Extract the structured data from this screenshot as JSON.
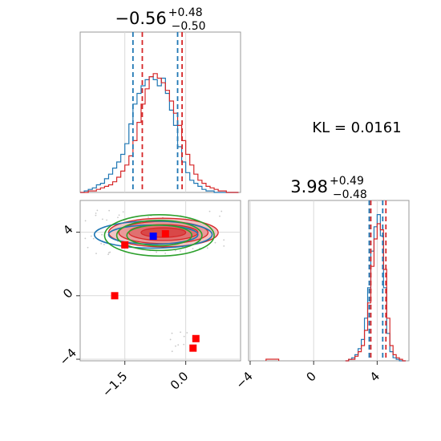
{
  "chart_data": [
    {
      "type": "histogram",
      "panel": "top-left",
      "title": {
        "value": "−0.56",
        "sup": "+0.48",
        "sub": "−0.50"
      },
      "xlim": [
        -2.6,
        1.35
      ],
      "bins_x": [
        -2.6,
        -2.5,
        -2.4,
        -2.3,
        -2.2,
        -2.1,
        -2.0,
        -1.9,
        -1.8,
        -1.7,
        -1.6,
        -1.5,
        -1.4,
        -1.3,
        -1.2,
        -1.1,
        -1.0,
        -0.9,
        -0.8,
        -0.7,
        -0.6,
        -0.5,
        -0.4,
        -0.3,
        -0.2,
        -0.1,
        0.0,
        0.1,
        0.2,
        0.3,
        0.4,
        0.5,
        0.6,
        0.7,
        0.8,
        0.9,
        1.0,
        1.1,
        1.2
      ],
      "series": [
        {
          "color": "#1f77b4",
          "values": [
            0.0,
            0.01,
            0.02,
            0.03,
            0.05,
            0.06,
            0.09,
            0.12,
            0.16,
            0.2,
            0.25,
            0.32,
            0.45,
            0.58,
            0.65,
            0.7,
            0.74,
            0.76,
            0.74,
            0.7,
            0.75,
            0.65,
            0.54,
            0.44,
            0.3,
            0.2,
            0.13,
            0.08,
            0.06,
            0.04,
            0.02,
            0.01,
            0.01,
            0.0,
            0.0,
            0.0,
            0.0,
            0.0,
            0.0
          ]
        },
        {
          "color": "#d62728",
          "values": [
            0.0,
            0.0,
            0.01,
            0.01,
            0.02,
            0.03,
            0.04,
            0.05,
            0.07,
            0.1,
            0.14,
            0.18,
            0.24,
            0.34,
            0.46,
            0.58,
            0.68,
            0.76,
            0.78,
            0.75,
            0.72,
            0.67,
            0.6,
            0.52,
            0.44,
            0.34,
            0.25,
            0.18,
            0.12,
            0.08,
            0.06,
            0.04,
            0.03,
            0.02,
            0.01,
            0.01,
            0.0,
            0.0,
            0.0
          ]
        }
      ],
      "quantile_lines": [
        {
          "color": "#1f77b4",
          "x": -1.3
        },
        {
          "color": "#1f77b4",
          "x": -0.2
        },
        {
          "color": "#d62728",
          "x": -1.07
        },
        {
          "color": "#d62728",
          "x": -0.09
        }
      ]
    },
    {
      "type": "contour",
      "panel": "bottom-left",
      "xlim": [
        -2.6,
        1.35
      ],
      "ylim": [
        -4.1,
        6.0
      ],
      "xticks": [
        -1.5,
        0.0
      ],
      "xtick_labels": [
        "−1.5",
        "0.0"
      ],
      "yticks": [
        -4,
        0,
        4
      ],
      "ytick_labels": [
        "−4",
        "0",
        "4"
      ],
      "series": [
        {
          "color": "#d62728",
          "center": [
            -0.55,
            3.98
          ],
          "ellipses": [
            [
              1.35,
              0.9
            ],
            [
              1.1,
              0.7
            ],
            [
              0.85,
              0.5
            ],
            [
              0.55,
              0.3
            ]
          ]
        },
        {
          "color": "#1f77b4",
          "center": [
            -0.8,
            3.85
          ],
          "ellipses": [
            [
              1.45,
              0.85
            ],
            [
              1.1,
              0.6
            ]
          ]
        },
        {
          "color": "#2ca02c",
          "center": [
            -0.65,
            3.8
          ],
          "ellipses": [
            [
              1.35,
              1.3
            ],
            [
              1.05,
              0.95
            ],
            [
              0.8,
              0.65
            ]
          ]
        }
      ],
      "markers": [
        {
          "color": "#ff0000",
          "x": -0.5,
          "y": 3.9
        },
        {
          "color": "#ff0000",
          "x": -1.5,
          "y": 3.2
        },
        {
          "color": "#ff0000",
          "x": -1.75,
          "y": 0.0
        },
        {
          "color": "#ff0000",
          "x": 0.25,
          "y": -2.7
        },
        {
          "color": "#ff0000",
          "x": 0.18,
          "y": -3.3
        },
        {
          "color": "#0000ff",
          "x": -0.8,
          "y": 3.75
        }
      ]
    },
    {
      "type": "histogram",
      "panel": "bottom-right",
      "title": {
        "value": "3.98",
        "sup": "+0.49",
        "sub": "−0.48"
      },
      "xlim": [
        -4.1,
        6.0
      ],
      "xticks": [
        -4,
        0,
        4
      ],
      "xtick_labels": [
        "−4",
        "0",
        "4"
      ],
      "bins_x": [
        2.0,
        2.2,
        2.4,
        2.6,
        2.8,
        3.0,
        3.2,
        3.4,
        3.6,
        3.8,
        4.0,
        4.2,
        4.4,
        4.6,
        4.8,
        5.0,
        5.2,
        5.4,
        5.6
      ],
      "series": [
        {
          "color": "#1f77b4",
          "values": [
            0.0,
            0.01,
            0.02,
            0.04,
            0.08,
            0.14,
            0.28,
            0.48,
            0.72,
            0.88,
            0.96,
            0.82,
            0.48,
            0.18,
            0.06,
            0.02,
            0.01,
            0.0,
            0.0
          ]
        },
        {
          "color": "#d62728",
          "values": [
            0.0,
            0.01,
            0.01,
            0.03,
            0.06,
            0.1,
            0.2,
            0.38,
            0.62,
            0.8,
            0.9,
            0.86,
            0.6,
            0.28,
            0.1,
            0.04,
            0.02,
            0.01,
            0.0
          ]
        }
      ],
      "quantile_lines": [
        {
          "color": "#1f77b4",
          "x": 3.5
        },
        {
          "color": "#1f77b4",
          "x": 4.35
        },
        {
          "color": "#d62728",
          "x": 3.6
        },
        {
          "color": "#d62728",
          "x": 4.55
        }
      ]
    }
  ],
  "annotation": "KL = 0.0161"
}
